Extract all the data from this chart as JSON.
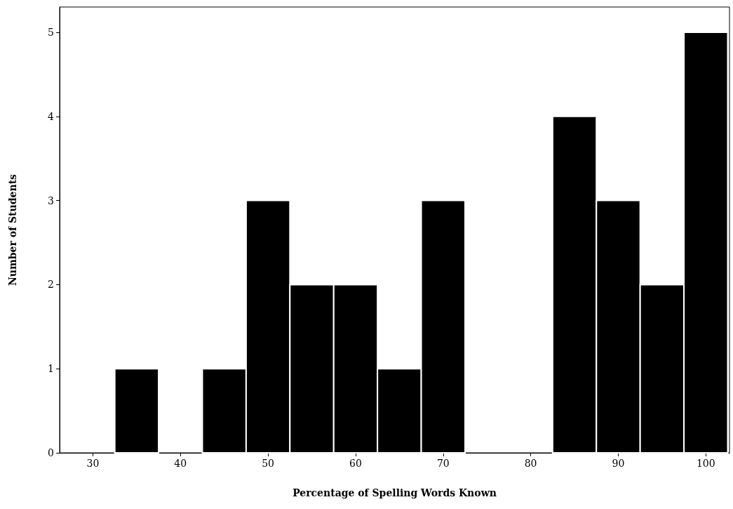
{
  "chart_data": {
    "type": "histogram",
    "xlabel": "Percentage of Spelling Words Known",
    "ylabel": "Number of Students",
    "bins": [
      32.5,
      37.5,
      42.5,
      47.5,
      52.5,
      57.5,
      62.5,
      67.5,
      72.5,
      77.5,
      82.5,
      87.5,
      92.5,
      97.5,
      102.5
    ],
    "values": [
      1,
      0,
      1,
      3,
      2,
      2,
      1,
      3,
      0,
      0,
      4,
      3,
      2,
      5
    ],
    "color": "#000000",
    "xlim": [
      26.2,
      102.7
    ],
    "xticks": [
      30,
      40,
      50,
      60,
      70,
      80,
      90,
      100
    ],
    "ylim": [
      0,
      5.3
    ],
    "yticks": [
      0,
      1,
      2,
      3,
      4,
      5
    ],
    "grid": false
  }
}
